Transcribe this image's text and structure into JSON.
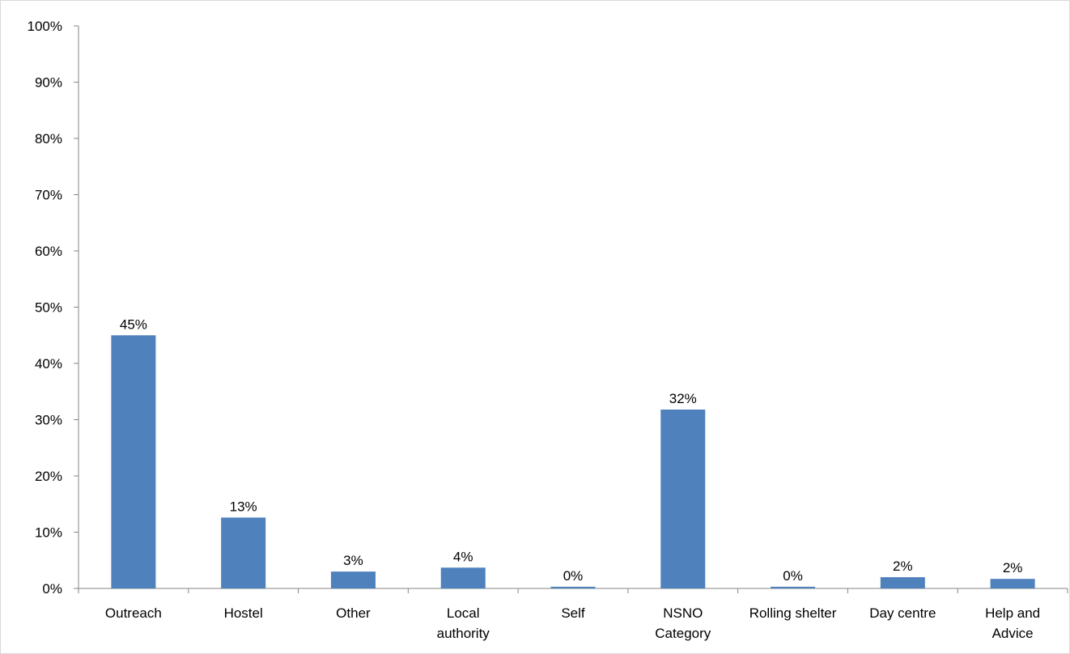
{
  "chart_data": {
    "type": "bar",
    "categories": [
      [
        "Outreach"
      ],
      [
        "Hostel"
      ],
      [
        "Other"
      ],
      [
        "Local",
        "authority"
      ],
      [
        "Self"
      ],
      [
        "NSNO",
        "Category"
      ],
      [
        "Rolling shelter"
      ],
      [
        "Day centre"
      ],
      [
        "Help and",
        "Advice"
      ]
    ],
    "values": [
      45,
      12.6,
      3,
      3.7,
      0.3,
      31.8,
      0.3,
      2,
      1.7
    ],
    "data_labels": [
      "45%",
      "13%",
      "3%",
      "4%",
      "0%",
      "32%",
      "0%",
      "2%",
      "2%"
    ],
    "ylim": [
      0,
      100
    ],
    "yticks": [
      0,
      10,
      20,
      30,
      40,
      50,
      60,
      70,
      80,
      90,
      100
    ],
    "ytick_labels": [
      "0%",
      "10%",
      "20%",
      "30%",
      "40%",
      "50%",
      "60%",
      "70%",
      "80%",
      "90%",
      "100%"
    ],
    "title": "",
    "xlabel": "",
    "ylabel": "",
    "grid": false,
    "legend": "none",
    "bar_color": "#4f81bd",
    "axis_color": "#868686"
  }
}
